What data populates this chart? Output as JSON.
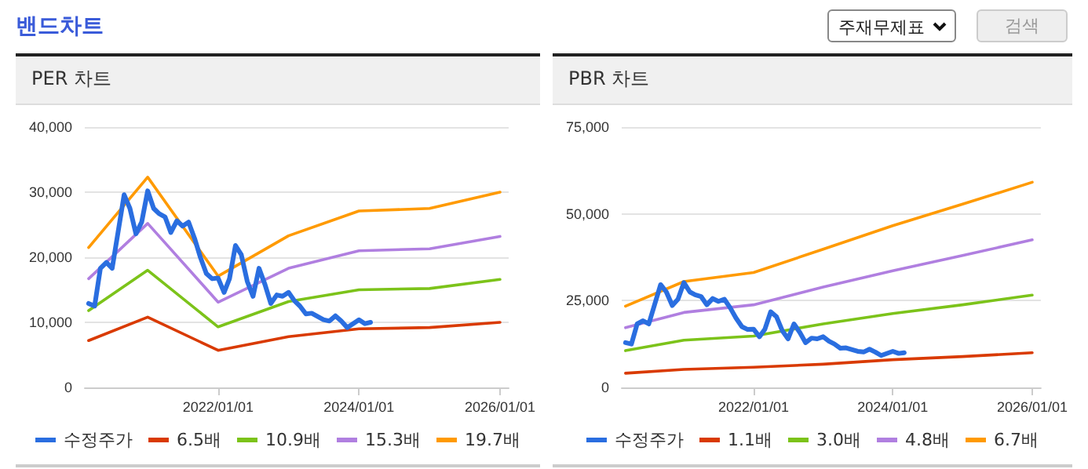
{
  "chart_data": [
    {
      "type": "other",
      "title": "밴드차트",
      "annotations": [
        "주재무제표",
        "검색"
      ]
    },
    {
      "type": "line",
      "title": "PER 차트",
      "marker": "none",
      "line_style": "solid",
      "grid": "y",
      "legend": "bottom",
      "xlim": [
        "2020-02-10",
        "2026-02-15"
      ],
      "xticks": [
        {
          "value": "2022-01-01",
          "label": "2022/01/01"
        },
        {
          "value": "2024-01-01",
          "label": "2024/01/01"
        },
        {
          "value": "2026-01-01",
          "label": "2026/01/01"
        }
      ],
      "ylim": [
        0,
        40000
      ],
      "yticks": [
        0,
        {
          "value": 10000,
          "label": "10,000"
        },
        {
          "value": 20000,
          "label": "20,000"
        },
        {
          "value": 30000,
          "label": "30,000"
        },
        {
          "value": 40000,
          "label": "40,000"
        }
      ],
      "series": [
        {
          "name": "수정주가",
          "color": "#2a6ee0",
          "x": [
            "2020-03",
            "2020-04",
            "2020-05",
            "2020-06",
            "2020-07",
            "2020-09",
            "2020-10",
            "2020-11",
            "2020-12",
            "2021-01",
            "2021-02",
            "2021-03",
            "2021-04",
            "2021-05",
            "2021-06",
            "2021-07",
            "2021-08",
            "2021-09",
            "2021-10",
            "2021-11",
            "2021-12",
            "2022-01",
            "2022-02",
            "2022-03",
            "2022-04",
            "2022-05",
            "2022-06",
            "2022-07",
            "2022-08",
            "2022-09",
            "2022-10",
            "2022-11",
            "2022-12",
            "2023-01",
            "2023-02",
            "2023-03",
            "2023-04",
            "2023-05",
            "2023-07",
            "2023-08",
            "2023-09",
            "2023-10",
            "2023-11",
            "2024-01",
            "2024-02",
            "2024-03"
          ],
          "values": [
            12900,
            12500,
            18300,
            19200,
            18300,
            29600,
            27500,
            23600,
            25400,
            30200,
            27500,
            26700,
            26200,
            23800,
            25600,
            24800,
            25400,
            22900,
            20000,
            17500,
            16700,
            16800,
            14600,
            16700,
            21800,
            20400,
            16300,
            14000,
            18300,
            15800,
            12900,
            14200,
            14000,
            14600,
            13300,
            12500,
            11300,
            11400,
            10400,
            10200,
            11000,
            10200,
            9200,
            10400,
            9800,
            10000
          ]
        },
        {
          "name": "6.5배",
          "color": "#d93a00",
          "x": [
            "2020-03",
            "2021-01",
            "2022-01",
            "2023-01",
            "2024-01",
            "2025-01",
            "2026-01"
          ],
          "values": [
            7200,
            10800,
            5700,
            7800,
            9000,
            9200,
            10000
          ]
        },
        {
          "name": "10.9배",
          "color": "#7cc31a",
          "x": [
            "2020-03",
            "2021-01",
            "2022-01",
            "2023-01",
            "2024-01",
            "2025-01",
            "2026-01"
          ],
          "values": [
            11800,
            18000,
            9300,
            13200,
            15000,
            15200,
            16600
          ]
        },
        {
          "name": "15.3배",
          "color": "#b07fe0",
          "x": [
            "2020-03",
            "2021-01",
            "2022-01",
            "2023-01",
            "2024-01",
            "2025-01",
            "2026-01"
          ],
          "values": [
            16700,
            25200,
            13100,
            18300,
            21000,
            21300,
            23200
          ]
        },
        {
          "name": "19.7배",
          "color": "#ff9a00",
          "x": [
            "2020-03",
            "2021-01",
            "2022-01",
            "2023-01",
            "2024-01",
            "2025-01",
            "2026-01"
          ],
          "values": [
            21500,
            32300,
            17100,
            23300,
            27100,
            27500,
            30000
          ]
        }
      ]
    },
    {
      "type": "line",
      "title": "PBR 차트",
      "marker": "none",
      "line_style": "solid",
      "grid": "y",
      "legend": "bottom",
      "xlim": [
        "2020-02-10",
        "2026-02-15"
      ],
      "xticks": [
        {
          "value": "2022-01-01",
          "label": "2022/01/01"
        },
        {
          "value": "2024-01-01",
          "label": "2024/01/01"
        },
        {
          "value": "2026-01-01",
          "label": "2026/01/01"
        }
      ],
      "ylim": [
        0,
        75000
      ],
      "yticks": [
        0,
        {
          "value": 25000,
          "label": "25,000"
        },
        {
          "value": 50000,
          "label": "50,000"
        },
        {
          "value": 75000,
          "label": "75,000"
        }
      ],
      "series": [
        {
          "name": "수정주가",
          "color": "#2a6ee0",
          "x": [
            "2020-03",
            "2020-04",
            "2020-05",
            "2020-06",
            "2020-07",
            "2020-09",
            "2020-10",
            "2020-11",
            "2020-12",
            "2021-01",
            "2021-02",
            "2021-03",
            "2021-04",
            "2021-05",
            "2021-06",
            "2021-07",
            "2021-08",
            "2021-09",
            "2021-10",
            "2021-11",
            "2021-12",
            "2022-01",
            "2022-02",
            "2022-03",
            "2022-04",
            "2022-05",
            "2022-06",
            "2022-07",
            "2022-08",
            "2022-09",
            "2022-10",
            "2022-11",
            "2022-12",
            "2023-01",
            "2023-02",
            "2023-03",
            "2023-04",
            "2023-05",
            "2023-07",
            "2023-08",
            "2023-09",
            "2023-10",
            "2023-11",
            "2024-01",
            "2024-02",
            "2024-03"
          ],
          "values": [
            12900,
            12500,
            18300,
            19200,
            18300,
            29600,
            27500,
            23600,
            25400,
            30200,
            27500,
            26700,
            26200,
            23800,
            25600,
            24800,
            25400,
            22900,
            20000,
            17500,
            16700,
            16800,
            14600,
            16700,
            21800,
            20400,
            16300,
            14000,
            18300,
            15800,
            12900,
            14200,
            14000,
            14600,
            13300,
            12500,
            11300,
            11400,
            10400,
            10200,
            11000,
            10200,
            9200,
            10400,
            9800,
            10000
          ]
        },
        {
          "name": "1.1배",
          "color": "#d93a00",
          "x": [
            "2020-03",
            "2021-01",
            "2022-01",
            "2023-01",
            "2024-01",
            "2025-01",
            "2026-01"
          ],
          "values": [
            4100,
            5200,
            5800,
            6700,
            8000,
            8900,
            10000
          ]
        },
        {
          "name": "3.0배",
          "color": "#7cc31a",
          "x": [
            "2020-03",
            "2021-01",
            "2022-01",
            "2023-01",
            "2024-01",
            "2025-01",
            "2026-01"
          ],
          "values": [
            10600,
            13600,
            14800,
            18300,
            21300,
            23800,
            26600
          ]
        },
        {
          "name": "4.8배",
          "color": "#b07fe0",
          "x": [
            "2020-03",
            "2021-01",
            "2022-01",
            "2023-01",
            "2024-01",
            "2025-01",
            "2026-01"
          ],
          "values": [
            17200,
            21600,
            23800,
            28900,
            33600,
            38000,
            42500
          ]
        },
        {
          "name": "6.7배",
          "color": "#ff9a00",
          "x": [
            "2020-03",
            "2021-01",
            "2022-01",
            "2023-01",
            "2024-01",
            "2025-01",
            "2026-01"
          ],
          "values": [
            23400,
            30500,
            33100,
            39800,
            46600,
            52800,
            59100
          ]
        }
      ]
    }
  ]
}
